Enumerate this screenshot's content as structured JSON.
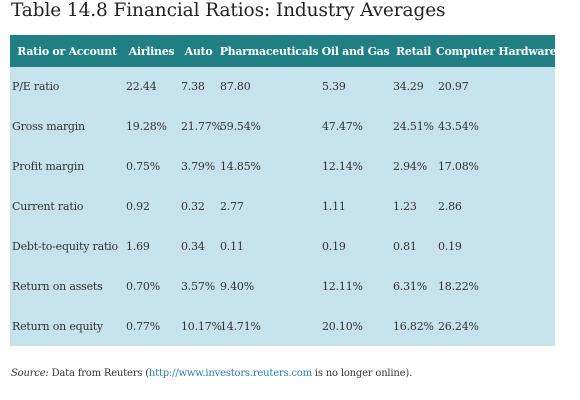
{
  "title": "Table 14.8 Financial Ratios: Industry Averages",
  "table": {
    "headers": [
      "Ratio or Account",
      "Airlines",
      "Auto",
      "Pharmaceuticals",
      "Oil and Gas",
      "Retail",
      "Computer Hardware"
    ],
    "rows": [
      [
        "P/E ratio",
        "22.44",
        "7.38",
        "87.80",
        "5.39",
        "34.29",
        "20.97"
      ],
      [
        "Gross margin",
        "19.28%",
        "21.77%",
        "59.54%",
        "47.47%",
        "24.51%",
        "43.54%"
      ],
      [
        "Profit margin",
        "0.75%",
        "3.79%",
        "14.85%",
        "12.14%",
        "2.94%",
        "17.08%"
      ],
      [
        "Current ratio",
        "0.92",
        "0.32",
        "2.77",
        "1.11",
        "1.23",
        "2.86"
      ],
      [
        "Debt-to-equity ratio",
        "1.69",
        "0.34",
        "0.11",
        "0.19",
        "0.81",
        "0.19"
      ],
      [
        "Return on assets",
        "0.70%",
        "3.57%",
        "9.40%",
        "12.11%",
        "6.31%",
        "18.22%"
      ],
      [
        "Return on equity",
        "0.77%",
        "10.17%",
        "14.71%",
        "20.10%",
        "16.82%",
        "26.24%"
      ]
    ]
  },
  "source": {
    "label": "Source:",
    "text_before": " Data from Reuters (",
    "link": "http://www.investors.reuters.com",
    "text_after": " is no longer online)."
  },
  "colors": {
    "header_bg": "#1f7f83",
    "body_bg": "#c6e2ec",
    "link": "#2a7fb8"
  }
}
